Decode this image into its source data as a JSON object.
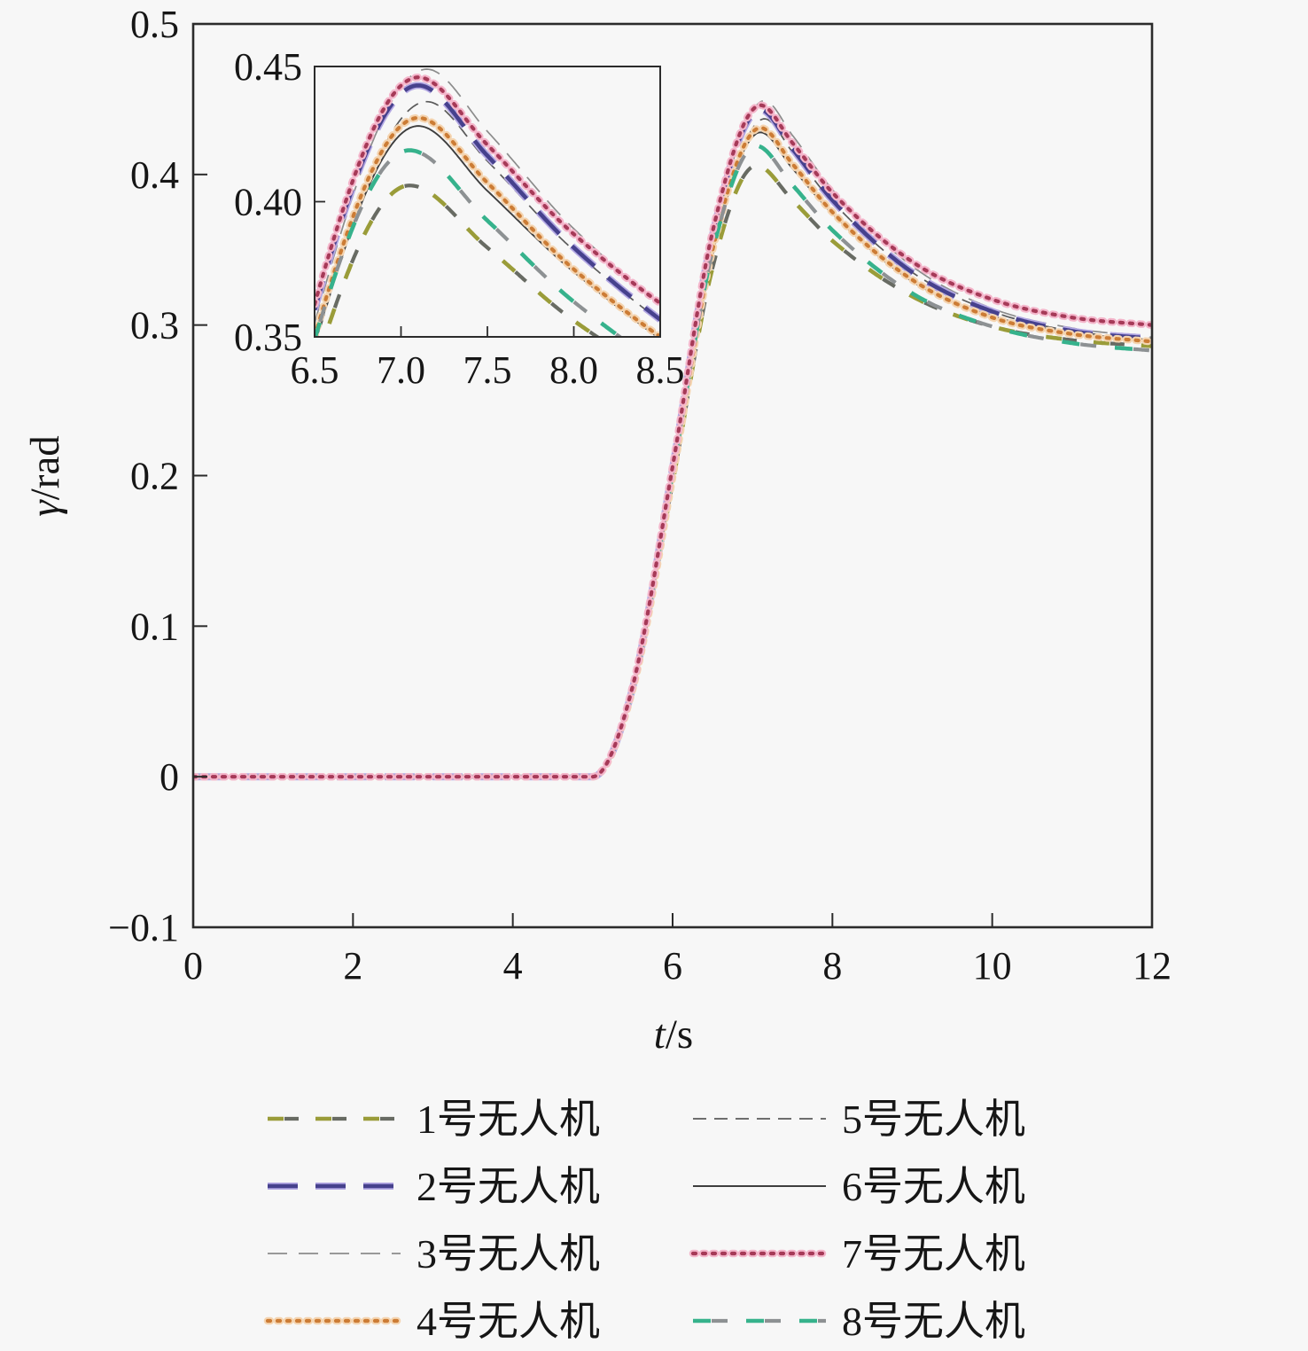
{
  "page": {
    "background": "#f7f7f7"
  },
  "chart_data": {
    "type": "line",
    "title": "",
    "xlabel_symbol": "t",
    "xlabel_unit": "/s",
    "ylabel_symbol": "γ",
    "ylabel_unit": "/rad",
    "xlim": [
      0,
      12
    ],
    "ylim": [
      -0.1,
      0.5
    ],
    "xtick_values": [
      0,
      2,
      4,
      6,
      8,
      10,
      12
    ],
    "xtick_labels": [
      "0",
      "2",
      "4",
      "6",
      "8",
      "10",
      "12"
    ],
    "ytick_values": [
      -0.1,
      0,
      0.1,
      0.2,
      0.3,
      0.4,
      0.5
    ],
    "ytick_labels": [
      "−0.1",
      "0",
      "0.1",
      "0.2",
      "0.3",
      "0.4",
      "0.5"
    ],
    "grid": false,
    "legend_position": "below-two-columns",
    "inset": {
      "xlim": [
        6.5,
        8.5
      ],
      "ylim": [
        0.35,
        0.45
      ],
      "xtick_values": [
        6.5,
        7.0,
        7.5,
        8.0,
        8.5
      ],
      "xtick_labels": [
        "6.5",
        "7.0",
        "7.5",
        "8.0",
        "8.5"
      ],
      "ytick_values": [
        0.35,
        0.4,
        0.45
      ],
      "ytick_labels": [
        "0.35",
        "0.40",
        "0.45"
      ]
    },
    "series": [
      {
        "name": "1号无人机",
        "peak_time": 7.05,
        "peak_value": 0.406,
        "final_value": 0.286,
        "points": [
          [
            0,
            0
          ],
          [
            2.5,
            0
          ],
          [
            5,
            0
          ],
          [
            5.5,
            0.057
          ],
          [
            6,
            0.195
          ],
          [
            6.5,
            0.338
          ],
          [
            7.05,
            0.406
          ],
          [
            7.5,
            0.383
          ],
          [
            8,
            0.356
          ],
          [
            9,
            0.319
          ],
          [
            10,
            0.299
          ],
          [
            11,
            0.29
          ],
          [
            12,
            0.286
          ]
        ],
        "layers": [
          {
            "color": "#9a9c39",
            "width": 4.6,
            "dash": "18 36",
            "offset": 0,
            "cap": "butt"
          },
          {
            "color": "#686b63",
            "width": 4.2,
            "dash": "16 38",
            "offset": -19,
            "cap": "butt"
          }
        ]
      },
      {
        "name": "2号无人机",
        "peak_time": 7.1,
        "peak_value": 0.443,
        "final_value": 0.291,
        "points": [
          [
            0,
            0
          ],
          [
            2.5,
            0
          ],
          [
            5,
            0
          ],
          [
            5.5,
            0.059
          ],
          [
            6,
            0.205
          ],
          [
            6.5,
            0.36
          ],
          [
            7.1,
            0.443
          ],
          [
            7.5,
            0.417
          ],
          [
            8,
            0.383
          ],
          [
            9,
            0.335
          ],
          [
            10,
            0.309
          ],
          [
            11,
            0.296
          ],
          [
            12,
            0.291
          ]
        ],
        "layers": [
          {
            "color": "#b2a7e3",
            "width": 8,
            "dash": "34 20",
            "offset": 0,
            "cap": "butt"
          },
          {
            "color": "#46418d",
            "width": 4.6,
            "dash": "34 20",
            "offset": 0,
            "cap": "butt"
          }
        ]
      },
      {
        "name": "3号无人机",
        "peak_time": 7.15,
        "peak_value": 0.449,
        "final_value": 0.292,
        "points": [
          [
            0,
            0
          ],
          [
            2.5,
            0
          ],
          [
            5,
            0
          ],
          [
            5.5,
            0.057
          ],
          [
            6,
            0.2
          ],
          [
            6.5,
            0.355
          ],
          [
            7.15,
            0.449
          ],
          [
            7.5,
            0.426
          ],
          [
            8,
            0.39
          ],
          [
            9,
            0.339
          ],
          [
            10,
            0.311
          ],
          [
            11,
            0.298
          ],
          [
            12,
            0.292
          ]
        ],
        "layers": [
          {
            "color": "#8c8c8c",
            "width": 1.7,
            "dash": "22 13",
            "offset": 0,
            "cap": "butt"
          }
        ]
      },
      {
        "name": "4号无人机",
        "peak_time": 7.1,
        "peak_value": 0.431,
        "final_value": 0.289,
        "points": [
          [
            0,
            0
          ],
          [
            2.5,
            0
          ],
          [
            5,
            0
          ],
          [
            5.5,
            0.058
          ],
          [
            6,
            0.199
          ],
          [
            6.5,
            0.35
          ],
          [
            7.1,
            0.431
          ],
          [
            7.5,
            0.407
          ],
          [
            8,
            0.375
          ],
          [
            9,
            0.33
          ],
          [
            10,
            0.305
          ],
          [
            11,
            0.294
          ],
          [
            12,
            0.289
          ]
        ],
        "layers": [
          {
            "color": "#f4d4b0",
            "width": 8.5,
            "dash": "3 8",
            "offset": 0,
            "cap": "round"
          },
          {
            "color": "#cc7c35",
            "width": 4.2,
            "dash": "3 8",
            "offset": 0,
            "cap": "round"
          }
        ]
      },
      {
        "name": "5号无人机",
        "peak_time": 7.15,
        "peak_value": 0.437,
        "final_value": 0.291,
        "points": [
          [
            0,
            0
          ],
          [
            2.5,
            0
          ],
          [
            5,
            0
          ],
          [
            5.5,
            0.056
          ],
          [
            6,
            0.195
          ],
          [
            6.5,
            0.346
          ],
          [
            7.15,
            0.437
          ],
          [
            7.5,
            0.415
          ],
          [
            8,
            0.382
          ],
          [
            9,
            0.335
          ],
          [
            10,
            0.309
          ],
          [
            11,
            0.296
          ],
          [
            12,
            0.291
          ]
        ],
        "layers": [
          {
            "color": "#5b5b5b",
            "width": 1.7,
            "dash": "15 9",
            "offset": 0,
            "cap": "butt"
          }
        ]
      },
      {
        "name": "6号无人机",
        "peak_time": 7.1,
        "peak_value": 0.428,
        "final_value": 0.29,
        "points": [
          [
            0,
            0
          ],
          [
            2.5,
            0
          ],
          [
            5,
            0
          ],
          [
            5.5,
            0.057
          ],
          [
            6,
            0.198
          ],
          [
            6.5,
            0.347
          ],
          [
            7.1,
            0.428
          ],
          [
            7.5,
            0.404
          ],
          [
            8,
            0.374
          ],
          [
            9,
            0.329
          ],
          [
            10,
            0.306
          ],
          [
            11,
            0.295
          ],
          [
            12,
            0.29
          ]
        ],
        "layers": [
          {
            "color": "#3e3e3e",
            "width": 1.9,
            "dash": "",
            "offset": 0,
            "cap": "butt"
          }
        ]
      },
      {
        "name": "7号无人机",
        "peak_time": 7.1,
        "peak_value": 0.446,
        "final_value": 0.3,
        "points": [
          [
            0,
            0
          ],
          [
            2.5,
            0
          ],
          [
            5,
            0
          ],
          [
            5.5,
            0.06
          ],
          [
            6,
            0.206
          ],
          [
            6.5,
            0.362
          ],
          [
            7.1,
            0.446
          ],
          [
            7.5,
            0.421
          ],
          [
            8,
            0.388
          ],
          [
            9,
            0.342
          ],
          [
            10,
            0.317
          ],
          [
            11,
            0.305
          ],
          [
            12,
            0.3
          ]
        ],
        "layers": [
          {
            "color": "#f4b6cb",
            "width": 8.5,
            "dash": "3 8",
            "offset": 0,
            "cap": "round"
          },
          {
            "color": "#a63a58",
            "width": 4.2,
            "dash": "3 8",
            "offset": 0,
            "cap": "round"
          }
        ]
      },
      {
        "name": "8号无人机",
        "peak_time": 7.05,
        "peak_value": 0.419,
        "final_value": 0.283,
        "points": [
          [
            0,
            0
          ],
          [
            2.5,
            0
          ],
          [
            5,
            0
          ],
          [
            5.5,
            0.059
          ],
          [
            6,
            0.202
          ],
          [
            6.5,
            0.349
          ],
          [
            7.05,
            0.419
          ],
          [
            7.5,
            0.393
          ],
          [
            8,
            0.363
          ],
          [
            9,
            0.321
          ],
          [
            10,
            0.299
          ],
          [
            11,
            0.288
          ],
          [
            12,
            0.283
          ]
        ],
        "layers": [
          {
            "color": "#36b28c",
            "width": 4.6,
            "dash": "20 40",
            "offset": 0,
            "cap": "butt"
          },
          {
            "color": "#8d9193",
            "width": 4.2,
            "dash": "18 42",
            "offset": -21,
            "cap": "butt"
          }
        ]
      }
    ]
  }
}
